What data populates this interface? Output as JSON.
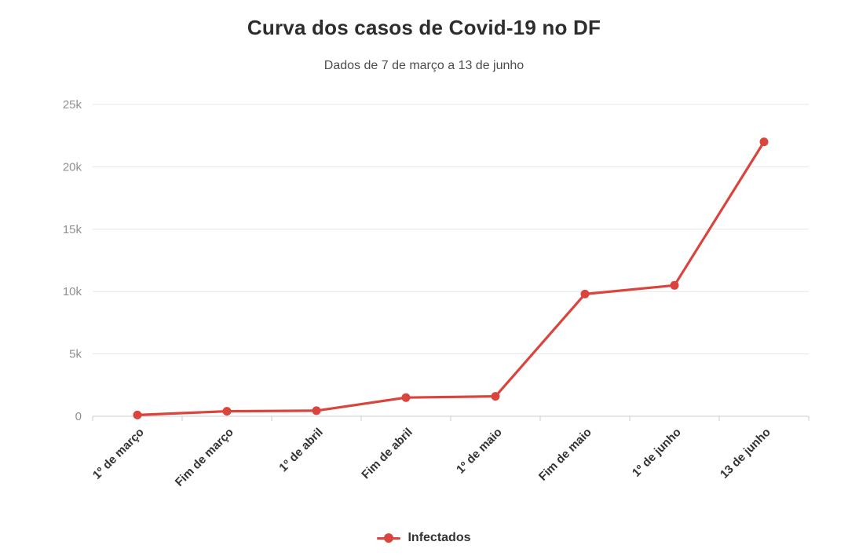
{
  "chart_data": {
    "type": "line",
    "title": "Curva dos casos de Covid-19 no DF",
    "subtitle": "Dados de 7 de março a 13 de junho",
    "categories": [
      "1º de março",
      "Fim de março",
      "1º de abril",
      "Fim de abril",
      "1º de maio",
      "Fim de maio",
      "1º de junho",
      "13 de junho"
    ],
    "series": [
      {
        "name": "Infectados",
        "color": "#d9453c",
        "values": [
          100,
          400,
          450,
          1500,
          1600,
          9800,
          10500,
          22000
        ]
      }
    ],
    "xlabel": "",
    "ylabel": "",
    "ylim": [
      0,
      25000
    ],
    "yticks": [
      {
        "value": 0,
        "label": "0"
      },
      {
        "value": 5000,
        "label": "5k"
      },
      {
        "value": 10000,
        "label": "10k"
      },
      {
        "value": 15000,
        "label": "15k"
      },
      {
        "value": 20000,
        "label": "20k"
      },
      {
        "value": 25000,
        "label": "25k"
      }
    ],
    "grid": true,
    "legend_position": "bottom"
  },
  "colors": {
    "background": "#ffffff",
    "title": "#2d2d2d",
    "subtitle": "#4d4d4d",
    "grid_line": "#e6e6e6",
    "axis_line": "#cccccc",
    "y_tick_label": "#909090",
    "x_tick_label": "#333333",
    "series_red": "#d9453c",
    "legend_text": "#333333"
  }
}
